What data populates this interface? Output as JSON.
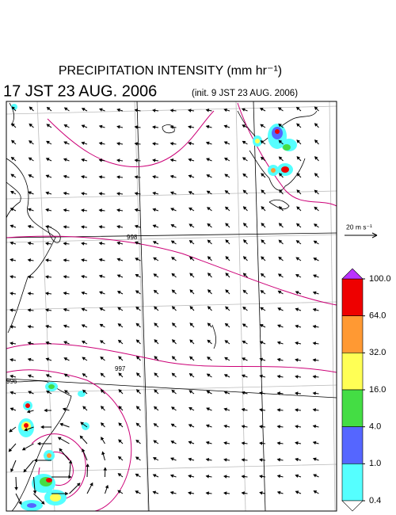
{
  "header": {
    "title": "PRECIPITATION INTENSITY (mm hr⁻¹)",
    "time": "17 JST 23 AUG. 2006",
    "init": "(init. 9 JST 23 AUG. 2006)"
  },
  "wind_scale": {
    "label": "20 m s⁻¹"
  },
  "contour_labels": [
    "998",
    "997",
    "996"
  ],
  "colorbar": {
    "ticks": [
      {
        "value": 100,
        "label": "100.0"
      },
      {
        "value": 64,
        "label": "64.0"
      },
      {
        "value": 32,
        "label": "32.0"
      },
      {
        "value": 16,
        "label": "16.0"
      },
      {
        "value": 4,
        "label": "4.0"
      },
      {
        "value": 1,
        "label": "1.0"
      },
      {
        "value": 0.4,
        "label": "0.4"
      }
    ],
    "colors": [
      "#ee0000",
      "#ff9933",
      "#ffff55",
      "#44dd44",
      "#5566ff",
      "#55ffff"
    ],
    "over_color": "#bb33ff",
    "under_color": "#ffffff"
  }
}
